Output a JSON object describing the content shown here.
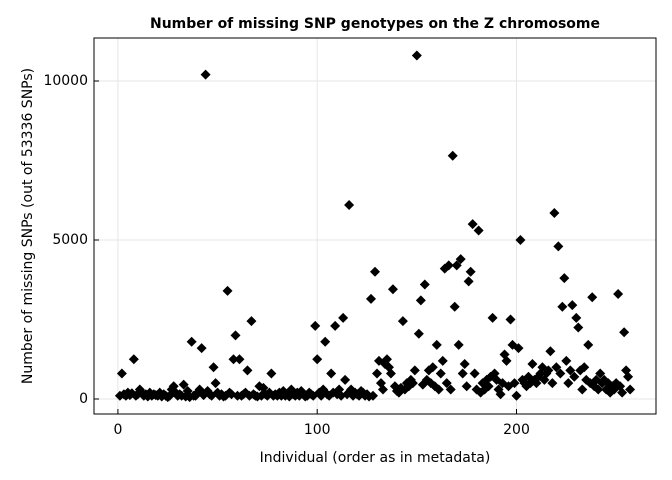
{
  "chart_data": {
    "type": "scatter",
    "title": "Number of missing SNP genotypes on the Z chromosome",
    "x_label": "Individual (order as in metadata)",
    "y_label": "Number of missing SNPs (out of 53336 SNPs)",
    "color": "#000000",
    "marker": "diamond",
    "grid": true,
    "xlim": [
      -12,
      270
    ],
    "ylim": [
      -472,
      11352
    ],
    "xticks": [
      0,
      100,
      200
    ],
    "yticks": [
      0,
      5000,
      10000
    ],
    "x": [
      1,
      2,
      3,
      4,
      5,
      6,
      7,
      8,
      9,
      10,
      11,
      12,
      13,
      14,
      15,
      16,
      17,
      18,
      19,
      20,
      21,
      22,
      23,
      24,
      25,
      26,
      27,
      28,
      29,
      30,
      31,
      32,
      33,
      34,
      35,
      36,
      37,
      38,
      39,
      40,
      41,
      42,
      43,
      44,
      45,
      46,
      47,
      48,
      49,
      50,
      51,
      52,
      53,
      54,
      55,
      56,
      57,
      58,
      59,
      60,
      61,
      62,
      63,
      64,
      65,
      66,
      67,
      68,
      69,
      70,
      71,
      72,
      73,
      74,
      75,
      76,
      77,
      78,
      79,
      80,
      81,
      82,
      83,
      84,
      85,
      86,
      87,
      88,
      89,
      90,
      91,
      92,
      93,
      94,
      95,
      96,
      97,
      98,
      99,
      100,
      101,
      102,
      103,
      104,
      105,
      106,
      107,
      108,
      109,
      110,
      111,
      112,
      113,
      114,
      115,
      116,
      117,
      118,
      119,
      120,
      121,
      122,
      123,
      124,
      125,
      126,
      127,
      128,
      129,
      130,
      131,
      132,
      133,
      134,
      135,
      136,
      137,
      138,
      139,
      140,
      141,
      142,
      143,
      144,
      145,
      146,
      147,
      148,
      149,
      150,
      151,
      152,
      153,
      154,
      155,
      156,
      157,
      158,
      159,
      160,
      161,
      162,
      163,
      164,
      165,
      166,
      167,
      168,
      169,
      170,
      171,
      172,
      173,
      174,
      175,
      176,
      177,
      178,
      179,
      180,
      181,
      182,
      183,
      184,
      185,
      186,
      187,
      188,
      189,
      190,
      191,
      192,
      193,
      194,
      195,
      196,
      197,
      198,
      199,
      200,
      201,
      202,
      203,
      204,
      205,
      206,
      207,
      208,
      209,
      210,
      211,
      212,
      213,
      214,
      215,
      216,
      217,
      218,
      219,
      220,
      221,
      222,
      223,
      224,
      225,
      226,
      227,
      228,
      229,
      230,
      231,
      232,
      233,
      234,
      235,
      236,
      237,
      238,
      239,
      240,
      241,
      242,
      243,
      244,
      245,
      246,
      247,
      248,
      249,
      250,
      251,
      252,
      253,
      254,
      255,
      256,
      257
    ],
    "values": [
      100,
      800,
      150,
      100,
      200,
      120,
      180,
      1250,
      100,
      150,
      300,
      200,
      100,
      150,
      80,
      200,
      100,
      150,
      120,
      100,
      200,
      80,
      150,
      100,
      60,
      100,
      300,
      400,
      200,
      100,
      150,
      100,
      450,
      80,
      250,
      60,
      1800,
      100,
      100,
      200,
      300,
      1600,
      120,
      10200,
      250,
      150,
      100,
      1000,
      500,
      200,
      100,
      150,
      80,
      100,
      3400,
      200,
      150,
      1250,
      2000,
      100,
      1250,
      100,
      150,
      200,
      900,
      100,
      2450,
      150,
      100,
      80,
      400,
      100,
      350,
      150,
      100,
      200,
      800,
      100,
      150,
      100,
      200,
      100,
      250,
      100,
      150,
      80,
      300,
      150,
      100,
      200,
      100,
      250,
      150,
      80,
      100,
      200,
      150,
      100,
      2300,
      1250,
      200,
      100,
      300,
      1800,
      150,
      100,
      800,
      200,
      2300,
      150,
      300,
      100,
      2550,
      600,
      150,
      6100,
      300,
      100,
      200,
      150,
      100,
      250,
      200,
      100,
      150,
      80,
      3150,
      100,
      4000,
      800,
      1200,
      500,
      300,
      1100,
      1250,
      1000,
      800,
      3450,
      400,
      250,
      200,
      350,
      2450,
      300,
      500,
      400,
      600,
      500,
      900,
      10800,
      2050,
      3100,
      450,
      3600,
      600,
      900,
      500,
      1000,
      400,
      1700,
      300,
      800,
      1200,
      4100,
      500,
      4200,
      300,
      7650,
      2900,
      4200,
      1700,
      4400,
      800,
      1100,
      400,
      3700,
      4000,
      5500,
      800,
      300,
      5300,
      200,
      500,
      300,
      600,
      400,
      700,
      2550,
      800,
      600,
      300,
      150,
      500,
      1400,
      1200,
      400,
      2500,
      1700,
      500,
      100,
      1600,
      5000,
      600,
      500,
      400,
      700,
      500,
      1100,
      600,
      500,
      700,
      800,
      1000,
      600,
      800,
      900,
      1500,
      500,
      5850,
      1000,
      4800,
      800,
      2900,
      3800,
      1200,
      500,
      900,
      2950,
      700,
      2550,
      2250,
      900,
      300,
      1000,
      600,
      1700,
      500,
      3200,
      400,
      600,
      300,
      800,
      500,
      600,
      300,
      500,
      200,
      400,
      300,
      500,
      3300,
      400,
      200,
      2100,
      900,
      700,
      300
    ]
  }
}
